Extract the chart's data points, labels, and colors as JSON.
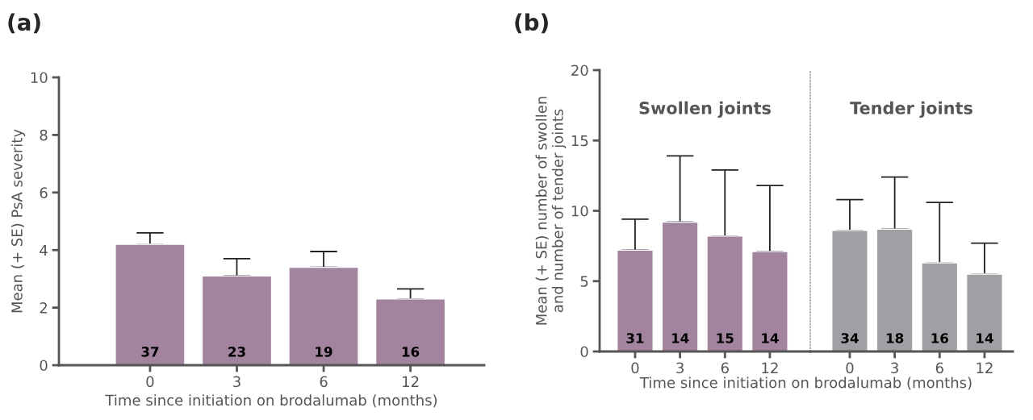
{
  "chart_data": [
    {
      "type": "bar",
      "title": "(a)",
      "xlabel": "Time since initiation on brodalumab (months)",
      "ylabel": "Mean (+ SE) PsA severity",
      "categories": [
        "0",
        "3",
        "6",
        "12"
      ],
      "series": [
        {
          "color": "#a3849f",
          "values": [
            4.2,
            3.1,
            3.4,
            2.3
          ],
          "errors": [
            [
              4.2,
              4.6
            ],
            [
              3.1,
              3.7
            ],
            [
              3.4,
              3.95
            ],
            [
              2.3,
              2.65
            ]
          ]
        }
      ],
      "annotations": [
        {
          "text": "37",
          "x": "0",
          "y": 0
        },
        {
          "text": "23",
          "x": "3",
          "y": 0
        },
        {
          "text": "19",
          "x": "6",
          "y": 0
        },
        {
          "text": "16",
          "x": "12",
          "y": 0
        }
      ],
      "ylim": [
        0,
        10
      ],
      "yticks": [
        0,
        2,
        4,
        6,
        8,
        10
      ],
      "grid": false,
      "legend": false
    },
    {
      "type": "bar",
      "title": "(b)",
      "subtitle": "Swollen joints",
      "xlabel": "Time since initiation on brodalumab (months)",
      "ylabel": "Mean (+ SE) number of swollen and number of tender joints",
      "categories": [
        "0",
        "3",
        "6",
        "12"
      ],
      "series": [
        {
          "color": "#a3849f",
          "values": [
            7.2,
            9.2,
            8.2,
            7.1
          ],
          "errors": [
            [
              7.2,
              9.4
            ],
            [
              9.2,
              13.9
            ],
            [
              8.2,
              12.9
            ],
            [
              7.1,
              11.8
            ]
          ]
        }
      ],
      "annotations": [
        {
          "text": "31",
          "x": "0",
          "y": 0
        },
        {
          "text": "14",
          "x": "3",
          "y": 0
        },
        {
          "text": "15",
          "x": "6",
          "y": 0
        },
        {
          "text": "14",
          "x": "12",
          "y": 0
        }
      ],
      "ylim": [
        0,
        20
      ],
      "yticks": [
        0,
        5,
        10,
        15,
        20
      ],
      "grid": false,
      "legend": false
    },
    {
      "type": "bar",
      "subtitle": "Tender joints",
      "categories": [
        "0",
        "3",
        "6",
        "12"
      ],
      "series": [
        {
          "color": "#a0a0a4",
          "values": [
            8.6,
            8.7,
            6.3,
            5.5
          ],
          "errors": [
            [
              8.6,
              10.8
            ],
            [
              8.7,
              12.4
            ],
            [
              6.3,
              10.6
            ],
            [
              5.5,
              7.7
            ]
          ]
        }
      ],
      "annotations": [
        {
          "text": "34",
          "x": "0",
          "y": 0
        },
        {
          "text": "18",
          "x": "3",
          "y": 0
        },
        {
          "text": "16",
          "x": "6",
          "y": 0
        },
        {
          "text": "14",
          "x": "12",
          "y": 0
        }
      ],
      "ylim": [
        0,
        20
      ],
      "tick_labels": "x",
      "grid": false,
      "legend": false
    }
  ]
}
